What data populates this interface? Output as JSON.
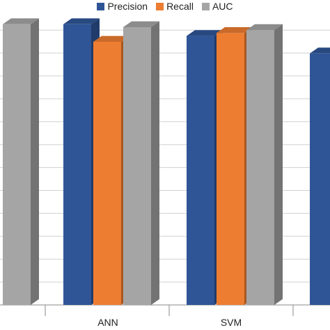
{
  "chart_data": {
    "type": "bar",
    "categories": [
      "",
      "ANN",
      "SVM",
      ""
    ],
    "series": [
      {
        "name": "Precision",
        "values": [
          null,
          0.96,
          0.92,
          0.86
        ]
      },
      {
        "name": "Recall",
        "values": [
          null,
          0.9,
          0.93,
          null
        ]
      },
      {
        "name": "AUC",
        "values": [
          0.96,
          0.95,
          0.94,
          null
        ]
      }
    ],
    "ylim": [
      0,
      1
    ],
    "grid": true,
    "legend_position": "top"
  },
  "colors": {
    "Precision": "#2F5597",
    "Recall": "#ED7D31",
    "AUC": "#A5A5A5",
    "grid": "#d0d0d0"
  }
}
